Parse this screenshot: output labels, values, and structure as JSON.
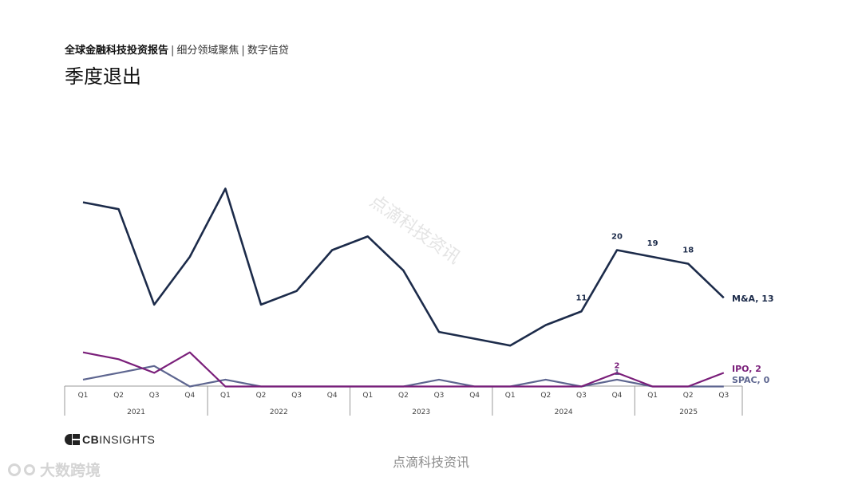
{
  "header": {
    "report_name": "全球金融科技投资报告",
    "section": "细分领域聚焦",
    "topic": "数字信贷",
    "separator": "|"
  },
  "title": "季度退出",
  "brand": {
    "logo_text_bold": "CB",
    "logo_text": "INSIGHTS"
  },
  "watermarks": {
    "diagonal": "点滴科技资讯",
    "footer": "点滴科技资讯",
    "corner_logo": "大数跨境"
  },
  "colors": {
    "ma": "#1c2b4a",
    "ipo": "#7a1f7a",
    "spac": "#5e6690",
    "axis": "#999999",
    "label": "#2a2a2a"
  },
  "chart_data": {
    "type": "line",
    "title": "季度退出",
    "x": [
      "Q1",
      "Q2",
      "Q3",
      "Q4",
      "Q1",
      "Q2",
      "Q3",
      "Q4",
      "Q1",
      "Q2",
      "Q3",
      "Q4",
      "Q1",
      "Q2",
      "Q3",
      "Q4",
      "Q1",
      "Q2",
      "Q3"
    ],
    "years": [
      {
        "label": "2021",
        "count": 4
      },
      {
        "label": "2022",
        "count": 4
      },
      {
        "label": "2023",
        "count": 4
      },
      {
        "label": "2024",
        "count": 4
      },
      {
        "label": "2025",
        "count": 3
      }
    ],
    "ylim": [
      0,
      29
    ],
    "grid": false,
    "series": [
      {
        "name": "M&A",
        "end_label": "M&A, 13",
        "color": "#1c2b4a",
        "values": [
          27,
          26,
          12,
          19,
          29,
          12,
          14,
          20,
          22,
          17,
          8,
          7,
          6,
          9,
          11,
          20,
          19,
          18,
          13
        ],
        "point_labels": {
          "14": "11",
          "15": "20",
          "16": "19",
          "17": "18"
        }
      },
      {
        "name": "IPO",
        "end_label": "IPO, 2",
        "color": "#7a1f7a",
        "values": [
          5,
          4,
          2,
          5,
          0,
          0,
          0,
          0,
          0,
          0,
          0,
          0,
          0,
          0,
          0,
          2,
          0,
          0,
          2
        ],
        "point_labels": {
          "15": "2"
        }
      },
      {
        "name": "SPAC",
        "end_label": "SPAC, 0",
        "color": "#5e6690",
        "values": [
          1,
          2,
          3,
          0,
          1,
          0,
          0,
          0,
          0,
          0,
          1,
          0,
          0,
          1,
          0,
          1,
          0,
          0,
          0
        ],
        "point_labels": {
          "15": "1"
        }
      }
    ]
  }
}
